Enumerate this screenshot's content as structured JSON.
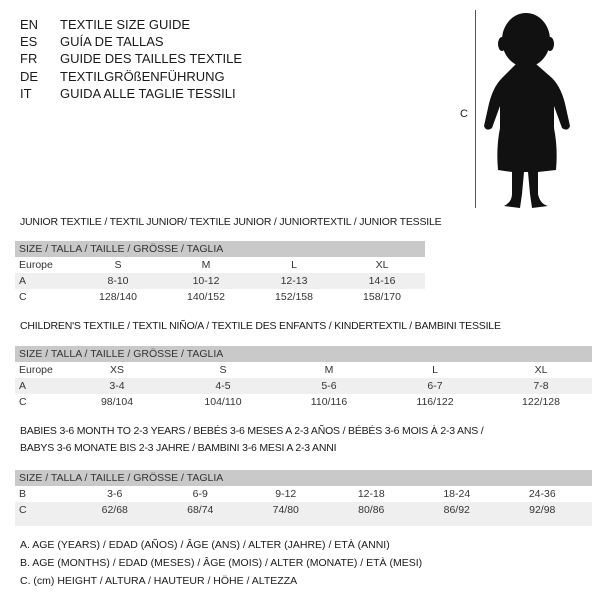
{
  "languages": [
    {
      "code": "EN",
      "text": "TEXTILE SIZE GUIDE"
    },
    {
      "code": "ES",
      "text": "GUÍA DE TALLAS"
    },
    {
      "code": "FR",
      "text": "GUIDE DES TAILLES TEXTILE"
    },
    {
      "code": "DE",
      "text": "TEXTILGRÖßENFÜHRUNG"
    },
    {
      "code": "IT",
      "text": "GUIDA ALLE TAGLIE TESSILI"
    }
  ],
  "figure": {
    "measure_label": "C",
    "icon": "baby-silhouette"
  },
  "junior": {
    "title": "JUNIOR TEXTILE / TEXTIL JUNIOR/ TEXTILE JUNIOR / JUNIORTEXTIL / JUNIOR TESSILE",
    "header": "SIZE / TALLA / TAILLE / GRÖSSE / TAGLIA",
    "rows": [
      {
        "label": "Europe",
        "values": [
          "S",
          "M",
          "L",
          "XL"
        ]
      },
      {
        "label": "A",
        "values": [
          "8-10",
          "10-12",
          "12-13",
          "14-16"
        ]
      },
      {
        "label": "C",
        "values": [
          "128/140",
          "140/152",
          "152/158",
          "158/170"
        ]
      }
    ]
  },
  "children": {
    "title": "CHILDREN'S TEXTILE / TEXTIL NIÑO/A / TEXTILE DES ENFANTS / KINDERTEXTIL / BAMBINI TESSILE",
    "header": "SIZE / TALLA / TAILLE / GRÖSSE / TAGLIA",
    "rows": [
      {
        "label": "Europe",
        "values": [
          "XS",
          "S",
          "M",
          "L",
          "XL"
        ]
      },
      {
        "label": "A",
        "values": [
          "3-4",
          "4-5",
          "5-6",
          "6-7",
          "7-8"
        ]
      },
      {
        "label": "C",
        "values": [
          "98/104",
          "104/110",
          "110/116",
          "116/122",
          "122/128"
        ]
      }
    ]
  },
  "babies": {
    "title_line1": "BABIES 3-6 MONTH TO 2-3 YEARS / BEBÉS 3-6 MESES A 2-3 AÑOS / BÉBÉS 3-6 MOIS À 2-3 ANS /",
    "title_line2": "BABYS 3-6 MONATE BIS 2-3 JAHRE / BAMBINI 3-6 MESI A 2-3 ANNI",
    "header": "SIZE / TALLA / TAILLE / GRÖSSE / TAGLIA",
    "rows": [
      {
        "label": "B",
        "values": [
          "3-6",
          "6-9",
          "9-12",
          "12-18",
          "18-24",
          "24-36"
        ]
      },
      {
        "label": "C",
        "values": [
          "62/68",
          "68/74",
          "74/80",
          "80/86",
          "86/92",
          "92/98"
        ]
      }
    ]
  },
  "legend": [
    "A. AGE (YEARS) / EDAD (AÑOS) / ÂGE (ANS) / ALTER (JAHRE) / ETÀ (ANNI)",
    "B. AGE (MONTHS) / EDAD (MESES) / ÂGE (MOIS) / ALTER (MONATE) / ETÀ (MESI)",
    "C. (cm) HEIGHT / ALTURA / HAUTEUR / HÖHE / ALTEZZA"
  ]
}
